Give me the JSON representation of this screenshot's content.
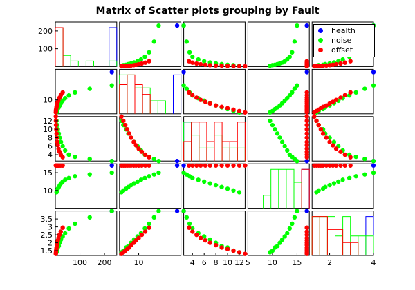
{
  "title": "Matrix of Scatter plots grouping by Fault",
  "legend": [
    {
      "label": "health",
      "color": "#0000ff"
    },
    {
      "label": "noise",
      "color": "#00ff00"
    },
    {
      "label": "offset",
      "color": "#ff0000"
    }
  ],
  "chart_data": {
    "type": "scatter-matrix",
    "variables": [
      {
        "range": [
          0,
          250
        ],
        "ticks": [
          100,
          200
        ],
        "yticks": [
          100,
          200
        ]
      },
      {
        "range": [
          5,
          21
        ],
        "ticks": [
          10
        ],
        "yticks": [
          10
        ]
      },
      {
        "range": [
          2.5,
          13
        ],
        "ticks": [
          4,
          6,
          8,
          10,
          12
        ],
        "yticks": [
          4,
          6,
          8,
          10,
          12
        ]
      },
      {
        "range": [
          5,
          17.5
        ],
        "ticks": [
          5,
          10,
          15
        ],
        "yticks": [
          10,
          15
        ]
      },
      {
        "range": [
          1.2,
          4
        ],
        "ticks": [
          2,
          4
        ],
        "yticks": [
          1.5,
          2,
          2.5,
          3,
          3.5
        ]
      }
    ],
    "groups": [
      {
        "name": "health",
        "color": "#0000ff",
        "points": [
          [
            230,
            20,
            2.5,
            17,
            4
          ]
        ]
      },
      {
        "name": "noise",
        "color": "#00ff00",
        "points": [
          [
            5,
            5.5,
            12,
            9.5,
            1.4
          ],
          [
            8,
            6,
            11,
            10,
            1.5
          ],
          [
            10,
            6.7,
            10,
            10.5,
            1.7
          ],
          [
            14,
            7.3,
            9,
            11,
            1.8
          ],
          [
            18,
            8,
            8,
            11.5,
            2.0
          ],
          [
            23,
            8.8,
            7,
            12,
            2.2
          ],
          [
            30,
            9.7,
            6,
            12.5,
            2.4
          ],
          [
            40,
            10.6,
            5,
            13,
            2.6
          ],
          [
            55,
            11.6,
            4,
            13.5,
            2.9
          ],
          [
            80,
            12.7,
            3.5,
            14,
            3.2
          ],
          [
            140,
            14,
            3,
            14.5,
            3.6
          ],
          [
            230,
            15.2,
            2.5,
            15,
            4.0
          ]
        ]
      },
      {
        "name": "offset",
        "color": "#ff0000",
        "points": [
          [
            2,
            5.5,
            13,
            17,
            1.3
          ],
          [
            2.5,
            6,
            12,
            17,
            1.4
          ],
          [
            3,
            6.5,
            11,
            17,
            1.5
          ],
          [
            4,
            7,
            10,
            17,
            1.6
          ],
          [
            5,
            7.5,
            9,
            17,
            1.7
          ],
          [
            6,
            8,
            8,
            17,
            1.85
          ],
          [
            8,
            8.7,
            7,
            17,
            2.0
          ],
          [
            10,
            9.3,
            6.2,
            17,
            2.15
          ],
          [
            13,
            10,
            5.4,
            17,
            2.3
          ],
          [
            17,
            10.8,
            4.7,
            17,
            2.5
          ],
          [
            22,
            11.7,
            4,
            17,
            2.7
          ],
          [
            30,
            12.7,
            3.4,
            17,
            2.95
          ]
        ]
      }
    ]
  }
}
